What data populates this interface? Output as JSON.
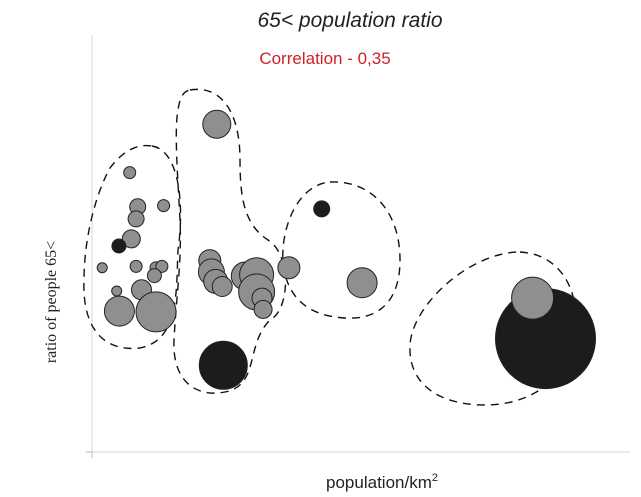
{
  "chart_data": {
    "type": "scatter",
    "title": "65< population ratio",
    "subtitle": "Correlation - 0,35",
    "xlabel": "population/km",
    "xlabel_sup": "2",
    "ylabel": "ratio of people 65<",
    "xlim": [
      0,
      100
    ],
    "ylim": [
      0,
      100
    ],
    "grid": false,
    "colors": {
      "highlight": "#d0202a",
      "gray": "#8f8f8f",
      "dark": "#1c1c1c"
    },
    "points": [
      {
        "x": 23.2,
        "y": 78.6,
        "size": 14,
        "color": "gray"
      },
      {
        "x": 7.0,
        "y": 67.0,
        "size": 6,
        "color": "gray"
      },
      {
        "x": 8.5,
        "y": 58.8,
        "size": 8,
        "color": "gray"
      },
      {
        "x": 13.3,
        "y": 59.1,
        "size": 6,
        "color": "gray"
      },
      {
        "x": 8.2,
        "y": 55.9,
        "size": 8,
        "color": "gray"
      },
      {
        "x": 7.3,
        "y": 51.1,
        "size": 9,
        "color": "gray"
      },
      {
        "x": 5.0,
        "y": 49.4,
        "size": 7,
        "color": "dark"
      },
      {
        "x": 1.9,
        "y": 44.2,
        "size": 5,
        "color": "gray"
      },
      {
        "x": 8.2,
        "y": 44.5,
        "size": 6,
        "color": "gray"
      },
      {
        "x": 11.9,
        "y": 44.2,
        "size": 6,
        "color": "gray"
      },
      {
        "x": 13.0,
        "y": 44.5,
        "size": 6,
        "color": "gray"
      },
      {
        "x": 11.6,
        "y": 42.3,
        "size": 7,
        "color": "gray"
      },
      {
        "x": 4.6,
        "y": 38.6,
        "size": 5,
        "color": "gray"
      },
      {
        "x": 9.2,
        "y": 38.9,
        "size": 10,
        "color": "gray"
      },
      {
        "x": 10.2,
        "y": 35.3,
        "size": 6,
        "color": "gray"
      },
      {
        "x": 5.1,
        "y": 33.8,
        "size": 15,
        "color": "gray"
      },
      {
        "x": 11.9,
        "y": 33.6,
        "size": 20,
        "color": "gray"
      },
      {
        "x": 21.9,
        "y": 45.9,
        "size": 11,
        "color": "gray"
      },
      {
        "x": 22.2,
        "y": 43.2,
        "size": 13,
        "color": "gray"
      },
      {
        "x": 23.0,
        "y": 40.9,
        "size": 12,
        "color": "gray"
      },
      {
        "x": 24.2,
        "y": 39.7,
        "size": 10,
        "color": "gray"
      },
      {
        "x": 28.5,
        "y": 42.2,
        "size": 14,
        "color": "gray"
      },
      {
        "x": 30.6,
        "y": 42.5,
        "size": 17,
        "color": "gray"
      },
      {
        "x": 30.6,
        "y": 38.4,
        "size": 18,
        "color": "gray"
      },
      {
        "x": 31.6,
        "y": 36.9,
        "size": 10,
        "color": "gray"
      },
      {
        "x": 31.8,
        "y": 34.2,
        "size": 9,
        "color": "gray"
      },
      {
        "x": 36.6,
        "y": 44.2,
        "size": 11,
        "color": "gray"
      },
      {
        "x": 24.4,
        "y": 20.8,
        "size": 24,
        "color": "dark"
      },
      {
        "x": 42.7,
        "y": 58.3,
        "size": 8,
        "color": "dark"
      },
      {
        "x": 50.2,
        "y": 40.6,
        "size": 15,
        "color": "gray"
      },
      {
        "x": 84.3,
        "y": 27.2,
        "size": 50,
        "color": "dark"
      },
      {
        "x": 81.9,
        "y": 36.9,
        "size": 21,
        "color": "gray"
      }
    ]
  }
}
